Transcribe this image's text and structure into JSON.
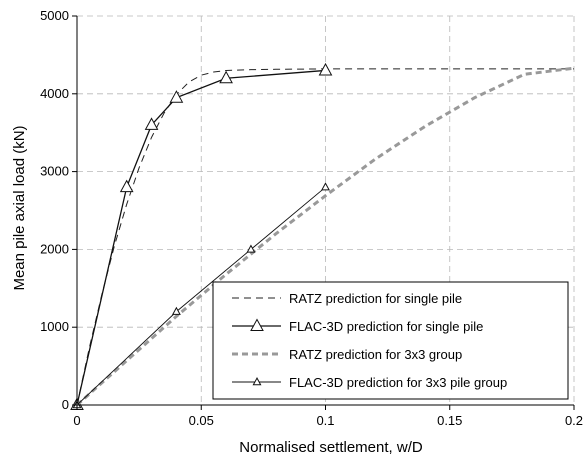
{
  "chart_data": {
    "type": "line",
    "title": "",
    "xlabel": "Normalised settlement, w/D",
    "ylabel": "Mean pile axial load (kN)",
    "xlim": [
      0,
      0.2
    ],
    "ylim": [
      0,
      5000
    ],
    "x_ticks": [
      0,
      0.05,
      0.1,
      0.15,
      0.2
    ],
    "x_tick_labels": [
      "0",
      "0.05",
      "0.1",
      "0.15",
      "0.2"
    ],
    "y_ticks": [
      0,
      1000,
      2000,
      3000,
      4000,
      5000
    ],
    "y_tick_labels": [
      "0",
      "1000",
      "2000",
      "3000",
      "4000",
      "5000"
    ],
    "grid": true,
    "legend_position": "bottom-right",
    "series": [
      {
        "name": "RATZ prediction for single pile",
        "style": "dashed-thin",
        "marker": "none",
        "color": "#222222",
        "x": [
          0,
          0.005,
          0.01,
          0.015,
          0.02,
          0.025,
          0.03,
          0.035,
          0.04,
          0.045,
          0.05,
          0.055,
          0.06,
          0.07,
          0.08,
          0.1,
          0.15,
          0.2
        ],
        "y": [
          0,
          740,
          1420,
          2040,
          2580,
          3050,
          3440,
          3750,
          3990,
          4150,
          4240,
          4280,
          4300,
          4310,
          4315,
          4320,
          4320,
          4320
        ]
      },
      {
        "name": "FLAC-3D prediction for single pile",
        "style": "solid",
        "marker": "triangle-large",
        "color": "#111111",
        "x": [
          0,
          0.02,
          0.03,
          0.04,
          0.06,
          0.1
        ],
        "y": [
          0,
          2800,
          3600,
          3950,
          4200,
          4300
        ]
      },
      {
        "name": "RATZ prediction for 3x3 group",
        "style": "dashed-thick",
        "marker": "none",
        "color": "#999999",
        "x": [
          0,
          0.02,
          0.04,
          0.06,
          0.08,
          0.1,
          0.12,
          0.14,
          0.16,
          0.18,
          0.2
        ],
        "y": [
          0,
          570,
          1140,
          1680,
          2200,
          2690,
          3160,
          3580,
          3950,
          4250,
          4330
        ]
      },
      {
        "name": "FLAC-3D prediction for 3x3 pile group",
        "style": "solid-thin",
        "marker": "triangle-small",
        "color": "#111111",
        "x": [
          0,
          0.04,
          0.07,
          0.1
        ],
        "y": [
          0,
          1200,
          2000,
          2800
        ]
      }
    ]
  }
}
